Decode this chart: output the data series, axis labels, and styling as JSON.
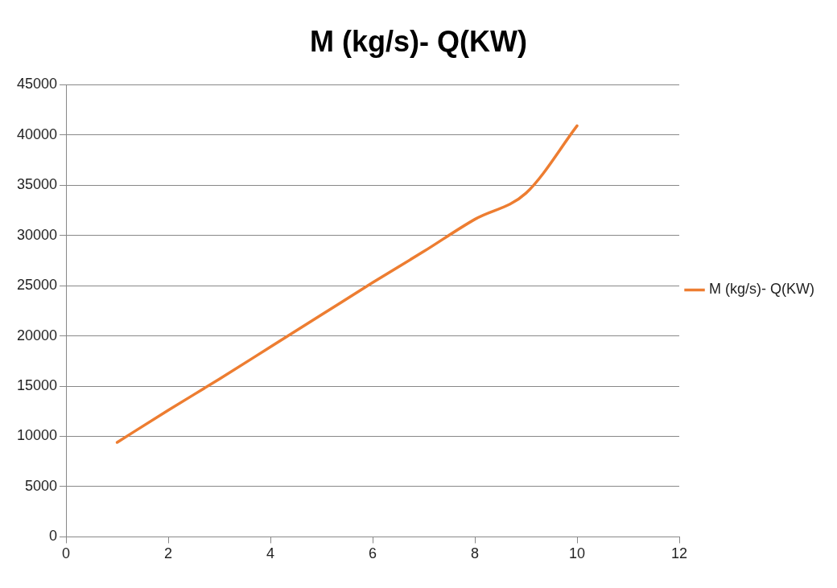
{
  "chart_data": {
    "type": "scatter",
    "title": "M (kg/s)- Q(KW)",
    "x": [
      1,
      2,
      3,
      4,
      5,
      6,
      7,
      8,
      9,
      10
    ],
    "series": [
      {
        "name": "M (kg/s)- Q(KW)",
        "color": "#ed7d31",
        "type": "line",
        "values": [
          9400,
          12600,
          15700,
          18900,
          22100,
          25300,
          28400,
          31600,
          34200,
          40900
        ]
      }
    ],
    "xlim": [
      0,
      12
    ],
    "xticks": [
      0,
      2,
      4,
      6,
      8,
      10,
      12
    ],
    "ylim": [
      0,
      45000
    ],
    "yticks": [
      0,
      5000,
      10000,
      15000,
      20000,
      25000,
      30000,
      35000,
      40000,
      45000
    ],
    "grid": "y",
    "legend": "right",
    "marker": "none",
    "line_style": "solid"
  }
}
